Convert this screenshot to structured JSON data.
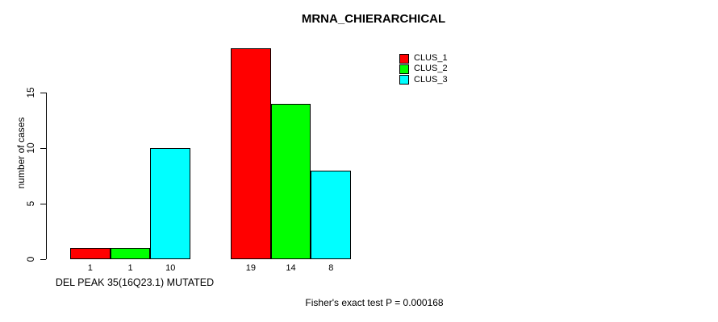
{
  "chart_data": {
    "type": "bar",
    "title": "MRNA_CHIERARCHICAL",
    "ylabel": "number of cases",
    "xlabel": "DEL PEAK 35(16Q23.1) MUTATED",
    "annotation": "Fisher's exact test P = 0.000168",
    "ylim": [
      0,
      19
    ],
    "yticks": [
      0,
      5,
      10,
      15
    ],
    "grid": false,
    "legend_position": "top-right",
    "categories": [
      "",
      ""
    ],
    "series": [
      {
        "name": "CLUS_1",
        "color": "#FF0000",
        "values": [
          1,
          19
        ]
      },
      {
        "name": "CLUS_2",
        "color": "#00FF00",
        "values": [
          1,
          14
        ]
      },
      {
        "name": "CLUS_3",
        "color": "#00FFFF",
        "values": [
          10,
          8
        ]
      }
    ],
    "bar_value_labels": [
      [
        "1",
        "1",
        "10"
      ],
      [
        "19",
        "14",
        "8"
      ]
    ]
  }
}
